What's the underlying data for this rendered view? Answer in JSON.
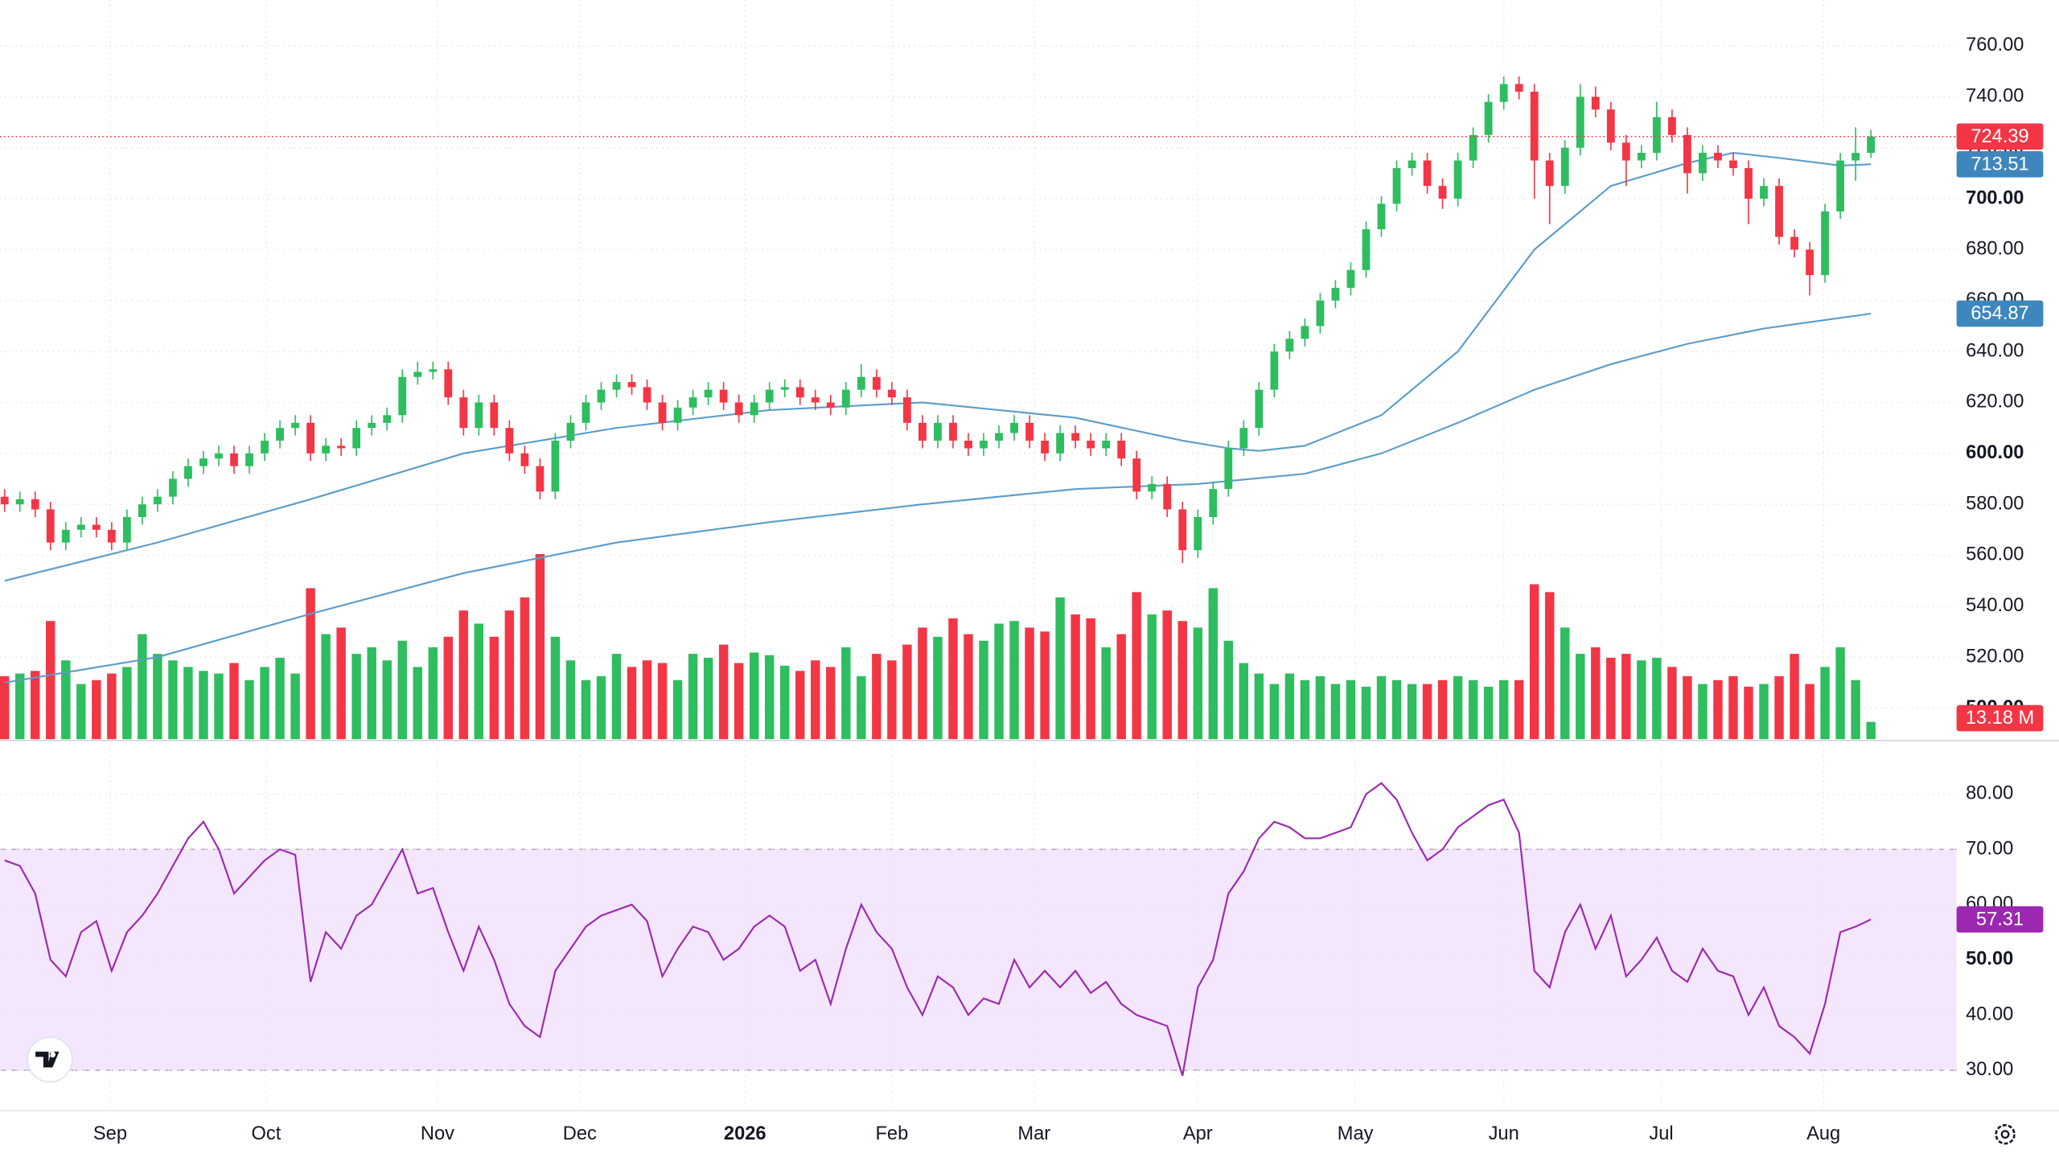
{
  "chart_data": {
    "type": "candlestick",
    "grid": true,
    "xlim": [
      -0.3,
      127.6
    ],
    "xticks": [
      {
        "value": 6.9,
        "label": "Sep"
      },
      {
        "value": 17.1,
        "label": "Oct"
      },
      {
        "value": 28.3,
        "label": "Nov"
      },
      {
        "value": 37.6,
        "label": "Dec"
      },
      {
        "value": 48.4,
        "label": "2026"
      },
      {
        "value": 58.0,
        "label": "Feb"
      },
      {
        "value": 67.3,
        "label": "Mar"
      },
      {
        "value": 78.0,
        "label": "Apr"
      },
      {
        "value": 88.3,
        "label": "May"
      },
      {
        "value": 98.0,
        "label": "Jun"
      },
      {
        "value": 108.3,
        "label": "Jul"
      },
      {
        "value": 118.9,
        "label": "Aug"
      }
    ],
    "price": {
      "ylim": [
        487.8,
        778
      ],
      "up_color": "#2ebd5f",
      "down_color": "#f23645",
      "yticks": [
        {
          "value": 500,
          "label": "500.00"
        },
        {
          "value": 520,
          "label": "520.00"
        },
        {
          "value": 540,
          "label": "540.00"
        },
        {
          "value": 560,
          "label": "560.00"
        },
        {
          "value": 580,
          "label": "580.00"
        },
        {
          "value": 600,
          "label": "600.00"
        },
        {
          "value": 620,
          "label": "620.00"
        },
        {
          "value": 640,
          "label": "640.00"
        },
        {
          "value": 660,
          "label": "660.00"
        },
        {
          "value": 680,
          "label": "680.00"
        },
        {
          "value": 700,
          "label": "700.00"
        },
        {
          "value": 720,
          "label": "720.00"
        },
        {
          "value": 740,
          "label": "740.00"
        },
        {
          "value": 760,
          "label": "760.00"
        }
      ],
      "candles": [
        [
          583,
          586,
          577,
          580
        ],
        [
          580,
          585,
          577,
          582
        ],
        [
          582,
          585,
          575,
          578
        ],
        [
          578,
          581,
          562,
          565
        ],
        [
          565,
          573,
          562,
          570
        ],
        [
          570,
          575,
          567,
          572
        ],
        [
          572,
          575,
          567,
          570
        ],
        [
          570,
          573,
          562,
          565
        ],
        [
          565,
          578,
          562,
          575
        ],
        [
          575,
          583,
          572,
          580
        ],
        [
          580,
          586,
          577,
          583
        ],
        [
          583,
          593,
          580,
          590
        ],
        [
          590,
          598,
          587,
          595
        ],
        [
          595,
          601,
          592,
          598
        ],
        [
          598,
          603,
          595,
          600
        ],
        [
          600,
          603,
          592,
          595
        ],
        [
          595,
          603,
          592,
          600
        ],
        [
          600,
          608,
          597,
          605
        ],
        [
          605,
          613,
          602,
          610
        ],
        [
          610,
          615,
          607,
          612
        ],
        [
          612,
          615,
          597,
          600
        ],
        [
          600,
          606,
          597,
          603
        ],
        [
          603,
          606,
          599,
          602
        ],
        [
          602,
          613,
          599,
          610
        ],
        [
          610,
          615,
          607,
          612
        ],
        [
          612,
          618,
          609,
          615
        ],
        [
          615,
          633,
          612,
          630
        ],
        [
          630,
          636,
          627,
          632
        ],
        [
          632,
          636,
          629,
          633
        ],
        [
          633,
          636,
          619,
          622
        ],
        [
          622,
          625,
          607,
          610
        ],
        [
          610,
          623,
          607,
          620
        ],
        [
          620,
          623,
          607,
          610
        ],
        [
          610,
          613,
          597,
          600
        ],
        [
          600,
          603,
          592,
          595
        ],
        [
          595,
          598,
          582,
          585
        ],
        [
          585,
          608,
          582,
          605
        ],
        [
          605,
          615,
          602,
          612
        ],
        [
          612,
          623,
          609,
          620
        ],
        [
          620,
          628,
          617,
          625
        ],
        [
          625,
          631,
          622,
          628
        ],
        [
          628,
          631,
          623,
          626
        ],
        [
          626,
          629,
          617,
          620
        ],
        [
          620,
          623,
          609,
          612
        ],
        [
          612,
          621,
          609,
          618
        ],
        [
          618,
          625,
          615,
          622
        ],
        [
          622,
          628,
          619,
          625
        ],
        [
          625,
          628,
          617,
          620
        ],
        [
          620,
          623,
          612,
          615
        ],
        [
          615,
          623,
          612,
          620
        ],
        [
          620,
          628,
          617,
          625
        ],
        [
          625,
          629,
          622,
          626
        ],
        [
          626,
          629,
          619,
          622
        ],
        [
          622,
          625,
          617,
          620
        ],
        [
          620,
          623,
          615,
          618
        ],
        [
          618,
          628,
          615,
          625
        ],
        [
          625,
          635,
          622,
          630
        ],
        [
          630,
          633,
          622,
          625
        ],
        [
          625,
          628,
          619,
          622
        ],
        [
          622,
          625,
          609,
          612
        ],
        [
          612,
          615,
          602,
          605
        ],
        [
          605,
          615,
          602,
          612
        ],
        [
          612,
          615,
          602,
          605
        ],
        [
          605,
          608,
          599,
          602
        ],
        [
          602,
          608,
          599,
          605
        ],
        [
          605,
          611,
          602,
          608
        ],
        [
          608,
          615,
          605,
          612
        ],
        [
          612,
          615,
          602,
          605
        ],
        [
          605,
          608,
          597,
          600
        ],
        [
          600,
          611,
          597,
          608
        ],
        [
          608,
          611,
          602,
          605
        ],
        [
          605,
          608,
          599,
          602
        ],
        [
          602,
          608,
          599,
          605
        ],
        [
          605,
          608,
          595,
          598
        ],
        [
          598,
          601,
          582,
          585
        ],
        [
          585,
          591,
          582,
          588
        ],
        [
          588,
          591,
          575,
          578
        ],
        [
          578,
          581,
          557,
          562
        ],
        [
          562,
          578,
          559,
          575
        ],
        [
          575,
          589,
          572,
          586
        ],
        [
          586,
          605,
          583,
          602
        ],
        [
          602,
          613,
          599,
          610
        ],
        [
          610,
          628,
          607,
          625
        ],
        [
          625,
          643,
          622,
          640
        ],
        [
          640,
          648,
          637,
          645
        ],
        [
          645,
          653,
          642,
          650
        ],
        [
          650,
          663,
          647,
          660
        ],
        [
          660,
          668,
          657,
          665
        ],
        [
          665,
          675,
          662,
          672
        ],
        [
          672,
          691,
          669,
          688
        ],
        [
          688,
          701,
          685,
          698
        ],
        [
          698,
          715,
          695,
          712
        ],
        [
          712,
          718,
          709,
          715
        ],
        [
          715,
          718,
          702,
          705
        ],
        [
          705,
          708,
          696,
          700
        ],
        [
          700,
          718,
          697,
          715
        ],
        [
          715,
          728,
          712,
          725
        ],
        [
          725,
          741,
          722,
          738
        ],
        [
          738,
          748,
          735,
          745
        ],
        [
          745,
          748,
          739,
          742
        ],
        [
          742,
          745,
          700,
          715
        ],
        [
          715,
          718,
          690,
          705
        ],
        [
          705,
          723,
          702,
          720
        ],
        [
          720,
          745,
          717,
          740
        ],
        [
          740,
          744,
          732,
          735
        ],
        [
          735,
          738,
          719,
          722
        ],
        [
          722,
          725,
          705,
          715
        ],
        [
          715,
          721,
          712,
          718
        ],
        [
          718,
          738,
          715,
          732
        ],
        [
          732,
          735,
          722,
          725
        ],
        [
          725,
          728,
          702,
          710
        ],
        [
          710,
          721,
          707,
          718
        ],
        [
          718,
          721,
          712,
          715
        ],
        [
          715,
          718,
          709,
          712
        ],
        [
          712,
          715,
          690,
          700
        ],
        [
          700,
          708,
          697,
          705
        ],
        [
          705,
          708,
          682,
          685
        ],
        [
          685,
          688,
          677,
          680
        ],
        [
          680,
          683,
          662,
          670
        ],
        [
          670,
          698,
          667,
          695
        ],
        [
          695,
          718,
          692,
          715
        ],
        [
          715,
          728,
          707,
          718
        ],
        [
          718,
          727,
          716,
          724.39
        ]
      ]
    },
    "moving_averages": [
      {
        "color": "#5d9cc9",
        "badge_color": "#3f86bd",
        "x": [
          0,
          10,
          20,
          30,
          36,
          40,
          50,
          60,
          70,
          77,
          80,
          82,
          85,
          90,
          95,
          100,
          105,
          110,
          113,
          116,
          120,
          122
        ],
        "values": [
          550,
          565,
          582,
          600,
          606,
          610,
          617,
          620,
          614,
          605,
          602,
          601,
          603,
          615,
          640,
          680,
          705,
          714,
          718,
          716,
          713,
          713.51
        ]
      },
      {
        "color": "#5d9cc9",
        "badge_color": "#3f86bd",
        "x": [
          0,
          10,
          20,
          30,
          40,
          50,
          60,
          70,
          78,
          85,
          90,
          95,
          100,
          105,
          110,
          115,
          122
        ],
        "values": [
          510,
          520,
          537,
          553,
          565,
          573,
          580,
          586,
          588,
          592,
          600,
          612,
          625,
          635,
          643,
          649,
          654.87
        ]
      }
    ],
    "volume": {
      "ylim": [
        0,
        150
      ],
      "last_label": "13.18 M",
      "values": [
        48,
        50,
        52,
        90,
        60,
        42,
        45,
        50,
        55,
        80,
        65,
        60,
        55,
        52,
        50,
        58,
        45,
        55,
        62,
        50,
        115,
        80,
        85,
        65,
        70,
        60,
        75,
        55,
        70,
        78,
        98,
        88,
        78,
        98,
        108,
        141,
        78,
        60,
        45,
        48,
        65,
        55,
        60,
        58,
        45,
        65,
        62,
        72,
        58,
        66,
        64,
        56,
        52,
        60,
        55,
        70,
        48,
        65,
        60,
        72,
        85,
        78,
        92,
        80,
        75,
        88,
        90,
        85,
        82,
        108,
        95,
        92,
        70,
        80,
        112,
        95,
        98,
        90,
        85,
        115,
        75,
        58,
        50,
        42,
        50,
        45,
        48,
        42,
        45,
        40,
        48,
        45,
        42,
        42,
        45,
        48,
        45,
        40,
        45,
        45,
        118,
        112,
        85,
        65,
        70,
        62,
        65,
        60,
        62,
        55,
        48,
        42,
        45,
        48,
        40,
        42,
        48,
        65,
        42,
        55,
        70,
        45,
        13.18
      ]
    },
    "rsi": {
      "ylim": [
        22.9,
        89
      ],
      "color": "#9c27b0",
      "fill": "#f3e6fd",
      "band": [
        30,
        70
      ],
      "yticks": [
        {
          "value": 30,
          "label": "30.00"
        },
        {
          "value": 40,
          "label": "40.00"
        },
        {
          "value": 50,
          "label": "50.00"
        },
        {
          "value": 60,
          "label": "60.00"
        },
        {
          "value": 70,
          "label": "70.00"
        },
        {
          "value": 80,
          "label": "80.00"
        }
      ],
      "values": [
        68,
        67,
        62,
        50,
        47,
        55,
        57,
        48,
        55,
        58,
        62,
        67,
        72,
        75,
        70,
        62,
        65,
        68,
        70,
        69,
        46,
        55,
        52,
        58,
        60,
        65,
        70,
        62,
        63,
        55,
        48,
        56,
        50,
        42,
        38,
        36,
        48,
        52,
        56,
        58,
        59,
        60,
        57,
        47,
        52,
        56,
        55,
        50,
        52,
        56,
        58,
        56,
        48,
        50,
        42,
        52,
        60,
        55,
        52,
        45,
        40,
        47,
        45,
        40,
        43,
        42,
        50,
        45,
        48,
        45,
        48,
        44,
        46,
        42,
        40,
        39,
        38,
        29,
        45,
        50,
        62,
        66,
        72,
        75,
        74,
        72,
        72,
        73,
        74,
        80,
        82,
        79,
        73,
        68,
        70,
        74,
        76,
        78,
        79,
        73,
        48,
        45,
        55,
        60,
        52,
        58,
        47,
        50,
        54,
        48,
        46,
        52,
        48,
        47,
        40,
        45,
        38,
        36,
        33,
        42,
        55,
        56,
        57.31
      ]
    }
  }
}
